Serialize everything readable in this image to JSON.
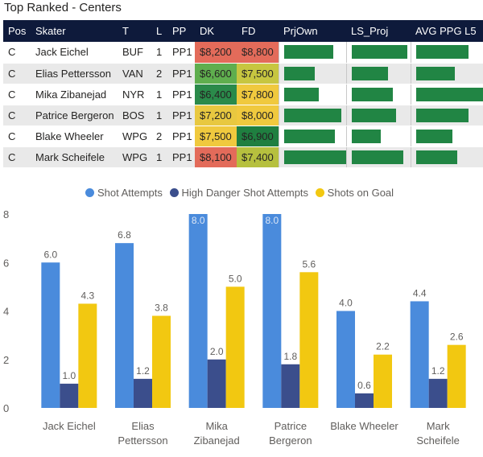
{
  "table": {
    "title": "Top Ranked - Centers",
    "columns": [
      "Pos",
      "Skater",
      "T",
      "L",
      "PP",
      "DK",
      "FD",
      "PrjOwn",
      "LS_Proj",
      "AVG PPG L5"
    ],
    "rows": [
      {
        "pos": "C",
        "skater": "Jack Eichel",
        "team": "BUF",
        "line": "1",
        "pp": "PP1",
        "dk": "$8,200",
        "fd": "$8,800",
        "dk_color": "#e36b5a",
        "fd_color": "#e36b5a",
        "prjown": 0.8,
        "ls_proj": 0.95,
        "avg_ppg": 0.78
      },
      {
        "pos": "C",
        "skater": "Elias Pettersson",
        "team": "VAN",
        "line": "2",
        "pp": "PP1",
        "dk": "$6,600",
        "fd": "$7,500",
        "dk_color": "#5fae4e",
        "fd_color": "#c7c640",
        "prjown": 0.5,
        "ls_proj": 0.62,
        "avg_ppg": 0.58
      },
      {
        "pos": "C",
        "skater": "Mika Zibanejad",
        "team": "NYR",
        "line": "1",
        "pp": "PP1",
        "dk": "$6,400",
        "fd": "$7,800",
        "dk_color": "#2a8a4a",
        "fd_color": "#f0c93e",
        "prjown": 0.57,
        "ls_proj": 0.7,
        "avg_ppg": 1.0
      },
      {
        "pos": "C",
        "skater": "Patrice Bergeron",
        "team": "BOS",
        "line": "1",
        "pp": "PP1",
        "dk": "$7,200",
        "fd": "$8,000",
        "dk_color": "#e8c840",
        "fd_color": "#f0c93e",
        "prjown": 0.93,
        "ls_proj": 0.76,
        "avg_ppg": 0.79
      },
      {
        "pos": "C",
        "skater": "Blake Wheeler",
        "team": "WPG",
        "line": "2",
        "pp": "PP1",
        "dk": "$7,500",
        "fd": "$6,900",
        "dk_color": "#f0c93e",
        "fd_color": "#1f7f40",
        "prjown": 0.83,
        "ls_proj": 0.5,
        "avg_ppg": 0.54
      },
      {
        "pos": "C",
        "skater": "Mark Scheifele",
        "team": "WPG",
        "line": "1",
        "pp": "PP1",
        "dk": "$8,100",
        "fd": "$7,400",
        "dk_color": "#e36b5a",
        "fd_color": "#b6c03e",
        "prjown": 1.0,
        "ls_proj": 0.88,
        "avg_ppg": 0.62
      }
    ]
  },
  "legend": [
    {
      "label": "Shot Attempts",
      "color": "#4a8bdc"
    },
    {
      "label": "High Danger Shot Attempts",
      "color": "#3b4e8c"
    },
    {
      "label": "Shots on Goal",
      "color": "#f2c811"
    }
  ],
  "chart_data": {
    "type": "bar",
    "categories": [
      [
        "Jack Eichel"
      ],
      [
        "Elias",
        "Pettersson"
      ],
      [
        "Mika",
        "Zibanejad"
      ],
      [
        "Patrice",
        "Bergeron"
      ],
      [
        "Blake Wheeler"
      ],
      [
        "Mark",
        "Scheifele"
      ]
    ],
    "series": [
      {
        "name": "Shot Attempts",
        "color": "#4a8bdc",
        "values": [
          6.0,
          6.8,
          8.0,
          8.0,
          4.0,
          4.4
        ]
      },
      {
        "name": "High Danger Shot Attempts",
        "color": "#3b4e8c",
        "values": [
          1.0,
          1.2,
          2.0,
          1.8,
          0.6,
          1.2
        ]
      },
      {
        "name": "Shots on Goal",
        "color": "#f2c811",
        "values": [
          4.3,
          3.8,
          5.0,
          5.6,
          2.2,
          2.6
        ]
      }
    ],
    "labels": [
      [
        "6.0",
        "6.8",
        "8.0",
        "8.0",
        "4.0",
        "4.4"
      ],
      [
        "1.0",
        "1.2",
        "2.0",
        "1.8",
        "0.6",
        "1.2"
      ],
      [
        "4.3",
        "3.8",
        "5.0",
        "5.6",
        "2.2",
        "2.6"
      ]
    ],
    "yticks": [
      "0",
      "2",
      "4",
      "6",
      "8"
    ],
    "ylim": [
      0,
      8
    ]
  }
}
